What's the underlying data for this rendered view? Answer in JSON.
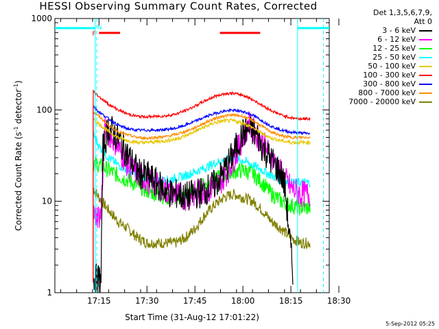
{
  "chart_data": {
    "type": "line",
    "title": "HESSI Observing Summary Count Rates, Corrected",
    "xlabel": "Start Time (31-Aug-12 17:01:22)",
    "ylabel": "Corrected Count Rate (s",
    "ylabel_sup1": "-1",
    "ylabel_mid": " detector",
    "ylabel_sup2": "-1",
    "ylabel_end": ")",
    "y_scale": "log",
    "ylim": [
      1,
      1000
    ],
    "xlim_minutes": [
      17.02,
      18.45
    ],
    "y_ticks": [
      "1",
      "10",
      "100",
      "1000"
    ],
    "x_ticks": [
      {
        "label": "17:15",
        "t": 17.25
      },
      {
        "label": "17:30",
        "t": 17.5
      },
      {
        "label": "17:45",
        "t": 17.75
      },
      {
        "label": "18:00",
        "t": 18.0
      },
      {
        "label": "18:15",
        "t": 18.25
      },
      {
        "label": "18:30",
        "t": 18.5
      }
    ],
    "legend_header": [
      "Det 1,3,5,6,7,9,",
      "Att 0"
    ],
    "series": [
      {
        "name": "3 - 6 keV",
        "color": "#000000",
        "t": [
          17.22,
          17.26,
          17.27,
          17.3,
          17.33,
          17.36,
          17.4,
          17.44,
          17.46,
          17.5,
          17.53,
          17.56,
          17.58,
          17.6,
          17.63,
          17.66,
          17.7,
          17.75,
          17.8,
          17.85,
          17.88,
          17.92,
          17.95,
          17.98,
          18.0,
          18.02,
          18.05,
          18.08,
          18.1,
          18.13,
          18.16,
          18.2,
          18.22,
          18.26
        ],
        "v": [
          1.4,
          1.4,
          36,
          65,
          55,
          45,
          32,
          23,
          20,
          19,
          17,
          15,
          14,
          13,
          12,
          12,
          11,
          12,
          13,
          15,
          18,
          25,
          33,
          45,
          55,
          60,
          58,
          50,
          40,
          32,
          26,
          20,
          14,
          1.6
        ]
      },
      {
        "name": "6 - 12 keV",
        "color": "#ff00ff",
        "t": [
          17.22,
          17.26,
          17.28,
          17.32,
          17.36,
          17.4,
          17.45,
          17.5,
          17.55,
          17.6,
          17.65,
          17.7,
          17.75,
          17.8,
          17.85,
          17.9,
          17.95,
          18.0,
          18.03,
          18.06,
          18.1,
          18.15,
          18.2,
          18.25,
          18.3,
          18.35
        ],
        "v": [
          7,
          7,
          60,
          50,
          35,
          25,
          20,
          17,
          15,
          13,
          12,
          11,
          12,
          13,
          14,
          18,
          28,
          50,
          70,
          58,
          45,
          30,
          20,
          14,
          12,
          12
        ]
      },
      {
        "name": "12 - 25 keV",
        "color": "#00ff00",
        "t": [
          17.22,
          17.25,
          17.3,
          17.35,
          17.4,
          17.45,
          17.5,
          17.55,
          17.6,
          17.65,
          17.7,
          17.75,
          17.8,
          17.85,
          17.9,
          17.95,
          18.0,
          18.05,
          18.1,
          18.15,
          18.2,
          18.25,
          18.3,
          18.35
        ],
        "v": [
          26,
          25,
          22,
          19,
          17,
          15,
          13,
          12,
          11,
          11,
          12,
          13,
          15,
          17,
          19,
          21,
          22,
          20,
          16,
          12,
          10,
          9,
          8.5,
          8.5
        ]
      },
      {
        "name": "25 - 50 keV",
        "color": "#00ffff",
        "t": [
          17.22,
          17.25,
          17.3,
          17.35,
          17.4,
          17.45,
          17.5,
          17.55,
          17.6,
          17.65,
          17.7,
          17.75,
          17.8,
          17.85,
          17.9,
          17.95,
          18.0,
          18.05,
          18.1,
          18.15,
          18.2,
          18.25,
          18.3,
          18.35
        ],
        "v": [
          55,
          40,
          30,
          25,
          22,
          20,
          18,
          17,
          17,
          18,
          19,
          21,
          23,
          26,
          28,
          29,
          28,
          25,
          22,
          19,
          17,
          16,
          16,
          16
        ]
      },
      {
        "name": "50 - 100 keV",
        "color": "#e6c800",
        "t": [
          17.22,
          17.25,
          17.3,
          17.35,
          17.4,
          17.45,
          17.5,
          17.55,
          17.6,
          17.65,
          17.7,
          17.75,
          17.8,
          17.85,
          17.9,
          17.95,
          18.0,
          18.05,
          18.1,
          18.15,
          18.2,
          18.25,
          18.3,
          18.35
        ],
        "v": [
          80,
          70,
          58,
          50,
          46,
          44,
          44,
          45,
          46,
          48,
          52,
          58,
          65,
          72,
          76,
          76,
          72,
          64,
          55,
          49,
          46,
          44,
          44,
          44
        ]
      },
      {
        "name": "100 - 300 keV",
        "color": "#ff0000",
        "t": [
          17.22,
          17.25,
          17.3,
          17.35,
          17.4,
          17.45,
          17.5,
          17.55,
          17.6,
          17.65,
          17.7,
          17.75,
          17.8,
          17.85,
          17.9,
          17.95,
          18.0,
          18.05,
          18.1,
          18.15,
          18.2,
          18.25,
          18.3,
          18.35
        ],
        "v": [
          160,
          140,
          115,
          100,
          90,
          85,
          84,
          85,
          86,
          90,
          98,
          110,
          125,
          140,
          150,
          152,
          145,
          130,
          112,
          98,
          88,
          82,
          80,
          80
        ]
      },
      {
        "name": "300 - 800 keV",
        "color": "#0000ff",
        "t": [
          17.22,
          17.25,
          17.3,
          17.35,
          17.4,
          17.45,
          17.5,
          17.55,
          17.6,
          17.65,
          17.7,
          17.75,
          17.8,
          17.85,
          17.9,
          17.95,
          18.0,
          18.05,
          18.1,
          18.15,
          18.2,
          18.25,
          18.3,
          18.35
        ],
        "v": [
          110,
          95,
          80,
          68,
          62,
          60,
          60,
          60,
          61,
          63,
          68,
          75,
          83,
          91,
          97,
          99,
          96,
          88,
          76,
          66,
          60,
          57,
          56,
          55
        ]
      },
      {
        "name": "800 - 7000 keV",
        "color": "#ff8c00",
        "t": [
          17.22,
          17.25,
          17.3,
          17.35,
          17.4,
          17.45,
          17.5,
          17.55,
          17.6,
          17.65,
          17.7,
          17.75,
          17.8,
          17.85,
          17.9,
          17.95,
          18.0,
          18.05,
          18.1,
          18.15,
          18.2,
          18.25,
          18.3,
          18.35
        ],
        "v": [
          95,
          85,
          68,
          58,
          53,
          50,
          49,
          50,
          51,
          54,
          58,
          64,
          72,
          80,
          86,
          88,
          85,
          77,
          66,
          57,
          52,
          50,
          50,
          50
        ]
      },
      {
        "name": "7000 - 20000 keV",
        "color": "#808000",
        "t": [
          17.22,
          17.25,
          17.3,
          17.35,
          17.4,
          17.45,
          17.5,
          17.55,
          17.6,
          17.65,
          17.7,
          17.75,
          17.8,
          17.85,
          17.9,
          17.95,
          18.0,
          18.05,
          18.1,
          18.15,
          18.2,
          18.25,
          18.3,
          18.35
        ],
        "v": [
          14,
          11,
          8,
          6,
          5,
          4,
          3.5,
          3.5,
          3.5,
          3.5,
          4,
          5,
          7,
          9,
          11,
          12,
          11,
          10,
          8,
          6,
          5,
          4,
          3.5,
          3.5
        ]
      }
    ],
    "flags": [
      {
        "label": "F",
        "color": "#ff0000",
        "segments": [
          [
            17.25,
            17.36
          ],
          [
            17.88,
            18.09
          ]
        ]
      },
      {
        "label": "N",
        "color": "#00ffff",
        "segments": [
          [
            17.02,
            17.23
          ],
          [
            18.285,
            18.45
          ]
        ]
      }
    ],
    "night_bounds": [
      17.23,
      18.285
    ],
    "night_dashed": [
      17.238,
      18.42
    ]
  },
  "footer_date": "5-Sep-2012 05:25"
}
